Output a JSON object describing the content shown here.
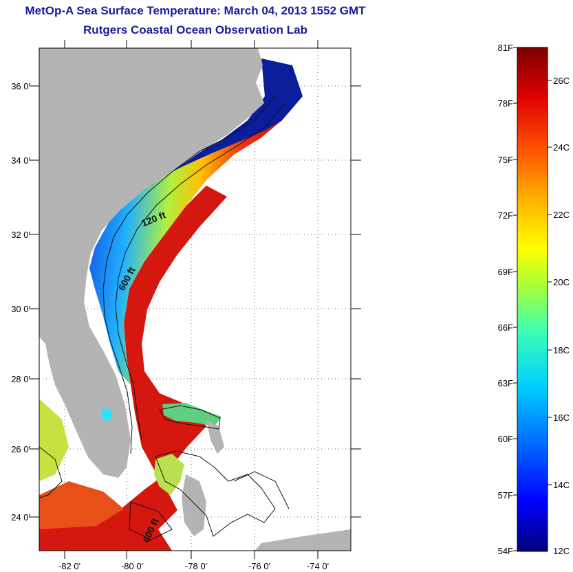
{
  "title": "MetOp-A Sea Surface Temperature:  March 04, 2013 1552 GMT",
  "subtitle": "Rutgers Coastal Ocean Observation Lab",
  "map": {
    "lat_labels": [
      "36 0'",
      "34 0'",
      "32 0'",
      "30 0'",
      "28 0'",
      "26 0'",
      "24 0'"
    ],
    "lon_labels": [
      "-82 0'",
      "-80 0'",
      "-78 0'",
      "-76 0'",
      "-74 0'"
    ],
    "contours": {
      "shelf_120": "120 ft",
      "shelf_600": "600 ft",
      "shelf_600_south": "600 ft"
    },
    "colors": {
      "land": "#b4b4b4",
      "cold": "#0a1e9c",
      "warm": "#c8140e",
      "no_data": "#ffffff"
    }
  },
  "colorbar": {
    "fahrenheit_labels": [
      "81F",
      "78F",
      "75F",
      "72F",
      "69F",
      "66F",
      "63F",
      "60F",
      "57F",
      "54F"
    ],
    "celsius_labels": [
      "26C",
      "24C",
      "22C",
      "20C",
      "18C",
      "16C",
      "14C",
      "12C"
    ],
    "range_f": [
      54,
      81
    ],
    "range_c": [
      12,
      27.2
    ],
    "gradient": [
      "#00007a",
      "#0000ff",
      "#0070ff",
      "#00d0ff",
      "#40ffb0",
      "#a0ff40",
      "#ffff00",
      "#ffb000",
      "#ff5000",
      "#e00000",
      "#7a0000"
    ]
  }
}
